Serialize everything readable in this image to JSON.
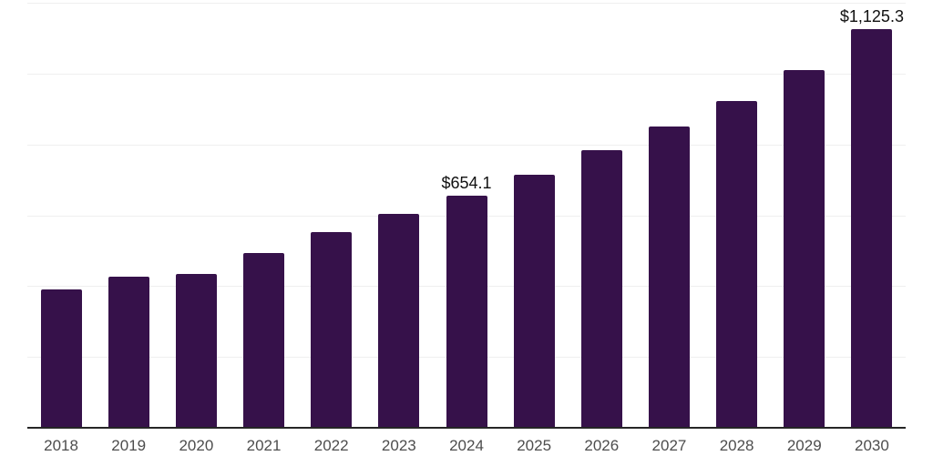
{
  "chart_data": {
    "type": "bar",
    "title": "",
    "xlabel": "",
    "ylabel": "",
    "categories": [
      "2018",
      "2019",
      "2020",
      "2021",
      "2022",
      "2023",
      "2024",
      "2025",
      "2026",
      "2027",
      "2028",
      "2029",
      "2030"
    ],
    "values": [
      391,
      427,
      433,
      494,
      553,
      605,
      654.1,
      714,
      785,
      851,
      923,
      1009,
      1125.3
    ],
    "data_labels": [
      {
        "index": 6,
        "text": "$654.1"
      },
      {
        "index": 12,
        "text": "$1,125.3"
      }
    ],
    "ylim": [
      0,
      1200
    ],
    "gridline_step": 200,
    "grid": true,
    "legend_position": "none",
    "y_tick_labels_visible": false,
    "colors": {
      "bar": "#36114A",
      "axis_line": "#262626",
      "gridline": "#efefef",
      "tick_label": "#4d4d4d",
      "data_label": "#111111",
      "background": "#ffffff"
    }
  }
}
